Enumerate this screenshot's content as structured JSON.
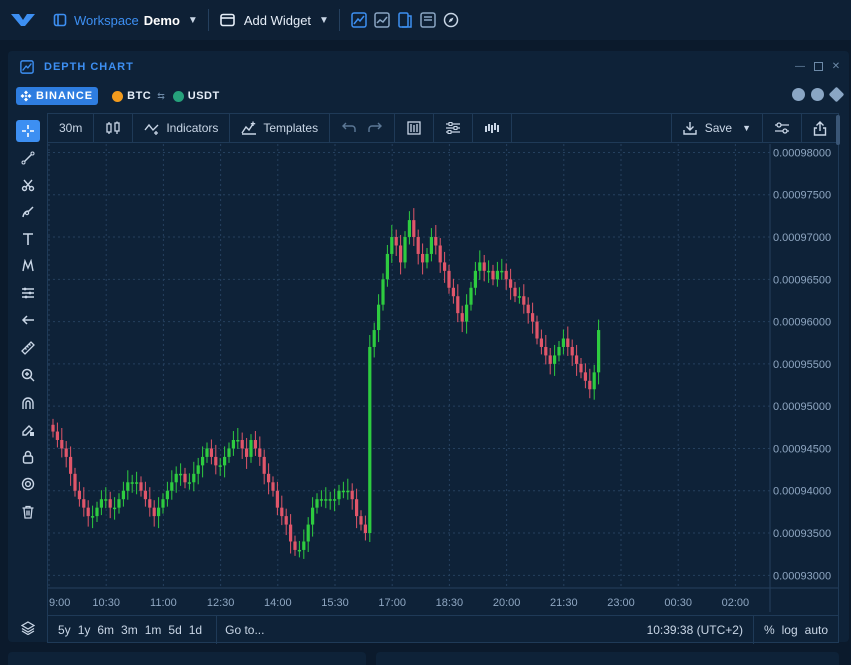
{
  "topbar": {
    "workspace_label": "Workspace",
    "workspace_name": "Demo",
    "add_widget_label": "Add Widget"
  },
  "panel": {
    "title": "DEPTH CHART",
    "exchange": "BINANCE",
    "base": "BTC",
    "quote": "USDT"
  },
  "toolbar": {
    "interval": "30m",
    "indicators_label": "Indicators",
    "templates_label": "Templates",
    "save_label": "Save"
  },
  "bottombar": {
    "ranges": [
      "5y",
      "1y",
      "6m",
      "3m",
      "1m",
      "5d",
      "1d"
    ],
    "goto_label": "Go to...",
    "clock": "10:39:38 (UTC+2)",
    "percent_label": "%",
    "log_label": "log",
    "auto_label": "auto"
  },
  "colors": {
    "accent": "#3d8ff2",
    "up": "#2ecc40",
    "down": "#e0566a",
    "grid": "#25405e"
  },
  "chart_data": {
    "type": "candlestick",
    "x_ticks": [
      "9:00",
      "10:30",
      "11:00",
      "12:30",
      "14:00",
      "15:30",
      "17:00",
      "18:30",
      "20:00",
      "21:30",
      "23:00",
      "00:30",
      "02:00"
    ],
    "y_ticks": [
      "0.00098000",
      "0.00097500",
      "0.00097000",
      "0.00096500",
      "0.00096000",
      "0.00095500",
      "0.00095000",
      "0.00094500",
      "0.00094000",
      "0.00093500",
      "0.00093000"
    ],
    "ylim": [
      0.0009285,
      0.000981
    ],
    "grid": true,
    "close": [
      0.000947,
      0.000946,
      0.000945,
      0.000944,
      0.000942,
      0.00094,
      0.000939,
      0.000938,
      0.000937,
      0.000937,
      0.000938,
      0.000939,
      0.000939,
      0.000938,
      0.000938,
      0.000939,
      0.00094,
      0.000941,
      0.000941,
      0.000941,
      0.00094,
      0.000939,
      0.000938,
      0.000937,
      0.000938,
      0.000939,
      0.00094,
      0.000941,
      0.000942,
      0.000942,
      0.000941,
      0.000941,
      0.000942,
      0.000943,
      0.000944,
      0.000945,
      0.000944,
      0.000943,
      0.000943,
      0.000944,
      0.000945,
      0.000946,
      0.000946,
      0.000945,
      0.000944,
      0.000946,
      0.000945,
      0.000944,
      0.000942,
      0.000941,
      0.00094,
      0.000938,
      0.000937,
      0.000936,
      0.000934,
      0.000933,
      0.000933,
      0.000934,
      0.000936,
      0.000938,
      0.000939,
      0.000939,
      0.000939,
      0.000939,
      0.000939,
      0.00094,
      0.00094,
      0.00094,
      0.000939,
      0.000937,
      0.000936,
      0.000935,
      0.000957,
      0.000959,
      0.000962,
      0.000965,
      0.000968,
      0.00097,
      0.000969,
      0.000967,
      0.00097,
      0.000972,
      0.00097,
      0.000968,
      0.000967,
      0.000968,
      0.00097,
      0.000969,
      0.000967,
      0.000966,
      0.000964,
      0.000963,
      0.000961,
      0.00096,
      0.000962,
      0.000964,
      0.000966,
      0.000967,
      0.000966,
      0.000966,
      0.000965,
      0.000966,
      0.000966,
      0.000965,
      0.000964,
      0.000963,
      0.000963,
      0.000962,
      0.000961,
      0.00096,
      0.000958,
      0.000957,
      0.000956,
      0.000955,
      0.000956,
      0.000957,
      0.000958,
      0.000957,
      0.000956,
      0.000955,
      0.000954,
      0.000953,
      0.000952,
      0.000954,
      0.000959
    ]
  }
}
